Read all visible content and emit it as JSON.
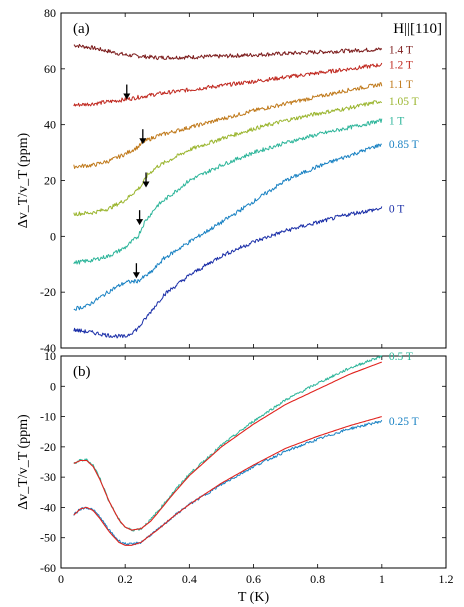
{
  "chart_data": [
    {
      "type": "line",
      "panel": "(a)",
      "field_label": "H||[110]",
      "ylabel": "Δv_T/v_T (ppm)",
      "xlim": [
        0,
        1.2
      ],
      "ylim": [
        -40,
        80
      ],
      "xticks": [
        0,
        0.2,
        0.4,
        0.6,
        0.8,
        1.0,
        1.2
      ],
      "yticks": [
        -40,
        -20,
        0,
        20,
        40,
        60,
        80
      ],
      "series": [
        {
          "name": "1.4 T",
          "color": "#7b1b1b",
          "x": [
            0.04,
            0.1,
            0.2,
            0.3,
            0.4,
            0.5,
            0.6,
            0.7,
            0.8,
            0.9,
            1.0
          ],
          "y": [
            68.5,
            67.5,
            65,
            64,
            64.2,
            64.5,
            65,
            65.5,
            66,
            66.5,
            67
          ]
        },
        {
          "name": "1.2 T",
          "color": "#c0281f",
          "x": [
            0.04,
            0.1,
            0.2,
            0.3,
            0.4,
            0.5,
            0.6,
            0.7,
            0.8,
            0.9,
            1.0
          ],
          "y": [
            47,
            47.5,
            49,
            51,
            52.5,
            54,
            55.5,
            57,
            58.5,
            60,
            61.5
          ]
        },
        {
          "name": "1.1 T",
          "color": "#c07a1c",
          "x": [
            0.04,
            0.1,
            0.15,
            0.2,
            0.24,
            0.26,
            0.3,
            0.4,
            0.5,
            0.6,
            0.7,
            0.8,
            0.9,
            1.0
          ],
          "y": [
            25,
            25.5,
            27,
            29.5,
            32,
            34,
            36,
            39,
            42,
            45,
            47.5,
            50,
            52.5,
            54.5
          ]
        },
        {
          "name": "1.05 T",
          "color": "#9ab52e",
          "x": [
            0.04,
            0.1,
            0.15,
            0.2,
            0.25,
            0.27,
            0.3,
            0.4,
            0.5,
            0.6,
            0.7,
            0.8,
            0.9,
            1.0
          ],
          "y": [
            8,
            8.5,
            10,
            13,
            18,
            22,
            25,
            31,
            35,
            38.5,
            41.5,
            44,
            46,
            48.5
          ]
        },
        {
          "name": "1 T",
          "color": "#2db59a",
          "x": [
            0.04,
            0.1,
            0.15,
            0.2,
            0.24,
            0.26,
            0.3,
            0.4,
            0.5,
            0.6,
            0.7,
            0.8,
            0.9,
            1.0
          ],
          "y": [
            -9.5,
            -8.5,
            -7,
            -4,
            0,
            5,
            11,
            20,
            25.5,
            30,
            33.5,
            36.5,
            39,
            41.5
          ]
        },
        {
          "name": "0.85 T",
          "color": "#1a82c3",
          "x": [
            0.04,
            0.08,
            0.12,
            0.16,
            0.2,
            0.24,
            0.28,
            0.32,
            0.4,
            0.5,
            0.6,
            0.7,
            0.8,
            0.9,
            1.0
          ],
          "y": [
            -26,
            -25,
            -22,
            -19,
            -16.5,
            -16,
            -13,
            -8,
            -2,
            5,
            12.5,
            20,
            25,
            29,
            33
          ]
        },
        {
          "name": "0 T",
          "color": "#1b2fa8",
          "x": [
            0.04,
            0.1,
            0.15,
            0.2,
            0.24,
            0.28,
            0.32,
            0.4,
            0.5,
            0.6,
            0.7,
            0.8,
            0.9,
            1.0
          ],
          "y": [
            -33.5,
            -34.5,
            -35.5,
            -36,
            -33,
            -27,
            -21,
            -14,
            -7,
            -2,
            2,
            5,
            8,
            10
          ]
        }
      ],
      "annotations": [
        {
          "type": "arrow",
          "x": 0.205,
          "y": 49
        },
        {
          "type": "arrow",
          "x": 0.255,
          "y": 33
        },
        {
          "type": "arrow",
          "x": 0.265,
          "y": 17.5
        },
        {
          "type": "arrow",
          "x": 0.245,
          "y": 4
        },
        {
          "type": "arrow",
          "x": 0.235,
          "y": -15
        }
      ]
    },
    {
      "type": "line",
      "panel": "(b)",
      "xlabel": "T (K)",
      "ylabel": "Δv_T/v_T (ppm)",
      "xlim": [
        0,
        1.2
      ],
      "ylim": [
        -60,
        10
      ],
      "xticks": [
        0,
        0.2,
        0.4,
        0.6,
        0.8,
        1.0,
        1.2
      ],
      "xtick_labels": [
        "0",
        "0.2",
        "0.4",
        "0.6",
        "0.8",
        "1",
        "1.2"
      ],
      "yticks": [
        -60,
        -50,
        -40,
        -30,
        -20,
        -10,
        0,
        10
      ],
      "series": [
        {
          "name": "0.5 T",
          "color": "#2db59a",
          "x": [
            0.04,
            0.06,
            0.08,
            0.1,
            0.12,
            0.15,
            0.18,
            0.2,
            0.22,
            0.25,
            0.28,
            0.3,
            0.35,
            0.4,
            0.5,
            0.6,
            0.7,
            0.8,
            0.9,
            1.0
          ],
          "y": [
            -25.5,
            -24.5,
            -24.3,
            -26,
            -30,
            -38,
            -44,
            -46.5,
            -47.5,
            -47,
            -44,
            -41.5,
            -35,
            -29,
            -19.5,
            -11.5,
            -4.5,
            1,
            6,
            10
          ]
        },
        {
          "name": "0.25 T",
          "color": "#1a82c3",
          "x": [
            0.04,
            0.06,
            0.08,
            0.1,
            0.12,
            0.15,
            0.18,
            0.2,
            0.22,
            0.25,
            0.28,
            0.3,
            0.35,
            0.4,
            0.5,
            0.6,
            0.7,
            0.8,
            0.9,
            1.0
          ],
          "y": [
            -42.5,
            -40.5,
            -40,
            -40.8,
            -43,
            -47.5,
            -51,
            -52,
            -52.2,
            -51.5,
            -49,
            -47.5,
            -43,
            -39,
            -32.5,
            -26.5,
            -21.5,
            -17.5,
            -14,
            -11.5
          ]
        },
        {
          "color": "#e0231e",
          "fit": true,
          "x": [
            0.04,
            0.06,
            0.08,
            0.1,
            0.12,
            0.15,
            0.18,
            0.2,
            0.22,
            0.25,
            0.28,
            0.3,
            0.35,
            0.4,
            0.5,
            0.6,
            0.7,
            0.8,
            0.9,
            1.0
          ],
          "y": [
            -25.5,
            -24.5,
            -24.5,
            -26.5,
            -30.5,
            -38,
            -44,
            -46.5,
            -47.5,
            -47,
            -44.5,
            -42,
            -35.5,
            -29.5,
            -20,
            -12.5,
            -6,
            -1,
            4,
            8
          ]
        },
        {
          "color": "#e0231e",
          "fit": true,
          "x": [
            0.04,
            0.06,
            0.08,
            0.1,
            0.12,
            0.15,
            0.18,
            0.2,
            0.22,
            0.25,
            0.28,
            0.3,
            0.35,
            0.4,
            0.5,
            0.6,
            0.7,
            0.8,
            0.9,
            1.0
          ],
          "y": [
            -42.5,
            -40.5,
            -40,
            -41,
            -43.5,
            -48,
            -51.5,
            -52.5,
            -52.5,
            -51.5,
            -49,
            -47.5,
            -43,
            -39,
            -32,
            -26,
            -20.5,
            -16.5,
            -13,
            -10
          ]
        }
      ]
    }
  ]
}
